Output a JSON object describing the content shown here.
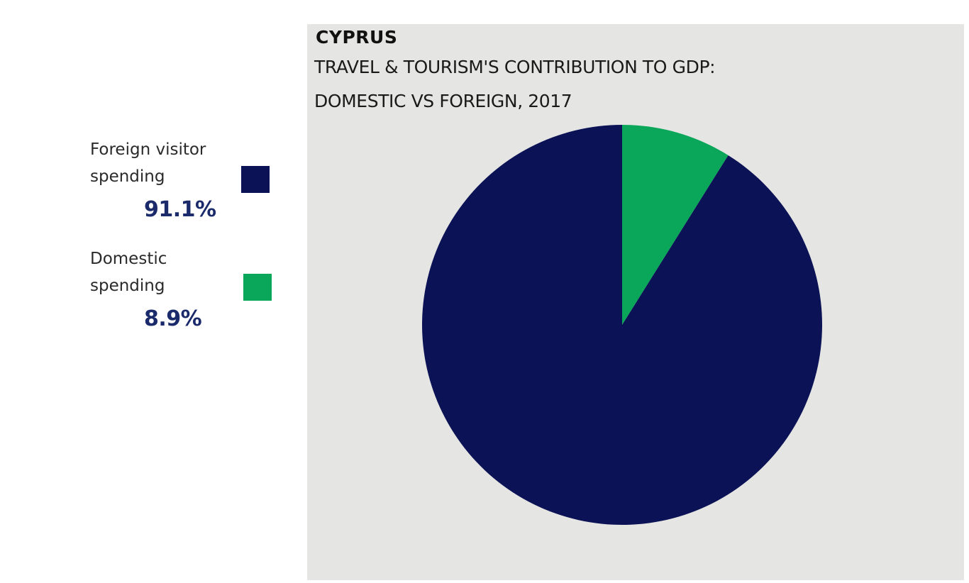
{
  "header": {
    "country": "CYPRUS",
    "title_line1": "TRAVEL & TOURISM'S CONTRIBUTION TO GDP:",
    "title_line2": "DOMESTIC VS FOREIGN, 2017"
  },
  "legend": {
    "foreign": {
      "line1": "Foreign visitor",
      "line2": "spending",
      "value": "91.1%"
    },
    "domestic": {
      "line1": "Domestic",
      "line2": "spending",
      "value": "8.9%"
    }
  },
  "colors": {
    "foreign": "#0b1255",
    "domestic": "#0aa65a",
    "panel": "#e5e5e3"
  },
  "chart_data": {
    "type": "pie",
    "title": "TRAVEL & TOURISM'S CONTRIBUTION TO GDP: DOMESTIC VS FOREIGN, 2017",
    "categories": [
      "Foreign visitor spending",
      "Domestic spending"
    ],
    "values": [
      91.1,
      8.9
    ],
    "legend_position": "left"
  }
}
